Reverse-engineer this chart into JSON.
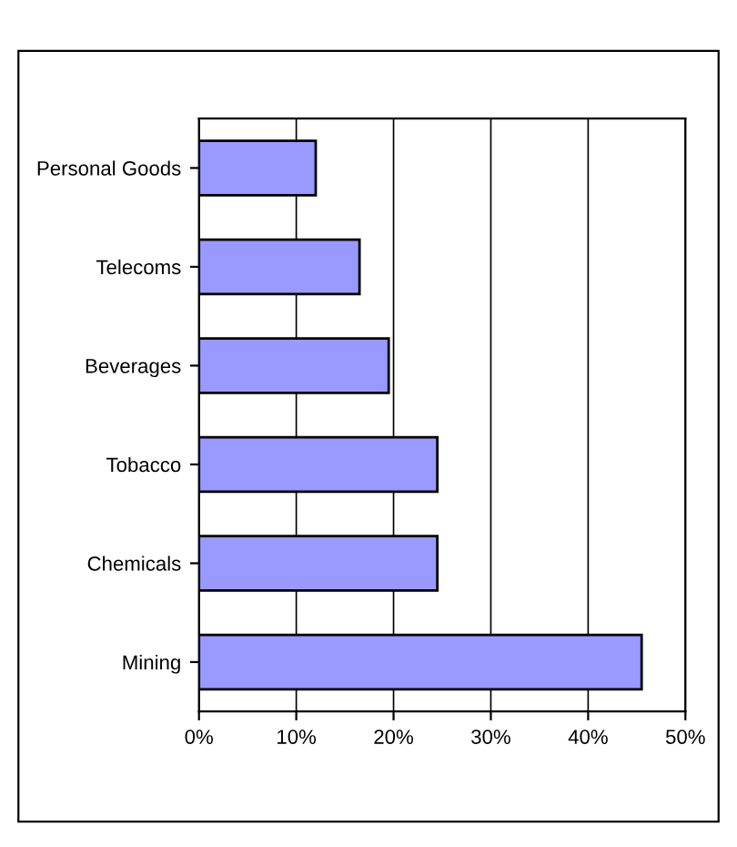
{
  "chart_data": {
    "type": "bar",
    "orientation": "horizontal",
    "categories": [
      "Personal Goods",
      "Telecoms",
      "Beverages",
      "Tobacco",
      "Chemicals",
      "Mining"
    ],
    "values": [
      12,
      16.5,
      19.5,
      24.5,
      24.5,
      45.5
    ],
    "color": "#9999ff",
    "xlim": [
      0,
      50
    ],
    "xticks": [
      {
        "value": 0,
        "label": "0%"
      },
      {
        "value": 10,
        "label": "10%"
      },
      {
        "value": 20,
        "label": "20%"
      },
      {
        "value": 30,
        "label": "30%"
      },
      {
        "value": 40,
        "label": "40%"
      },
      {
        "value": 50,
        "label": "50%"
      }
    ],
    "grid": "x"
  }
}
